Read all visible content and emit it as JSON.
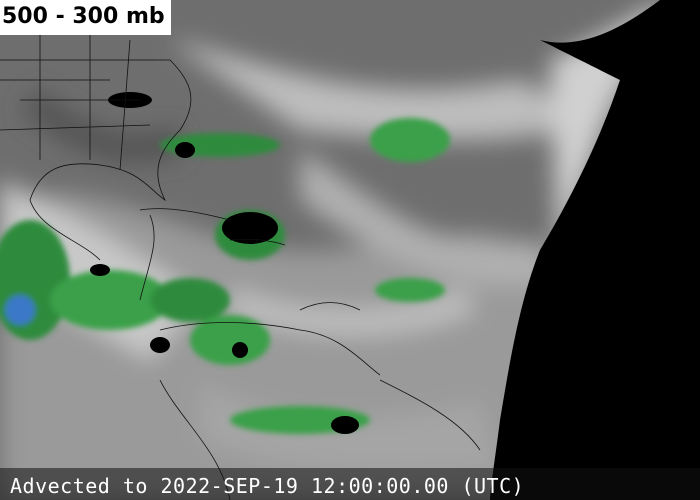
{
  "header": {
    "title": "500 - 300 mb"
  },
  "footer": {
    "timestamp": "Advected to 2022-SEP-19 12:00:00.00 (UTC)"
  }
}
